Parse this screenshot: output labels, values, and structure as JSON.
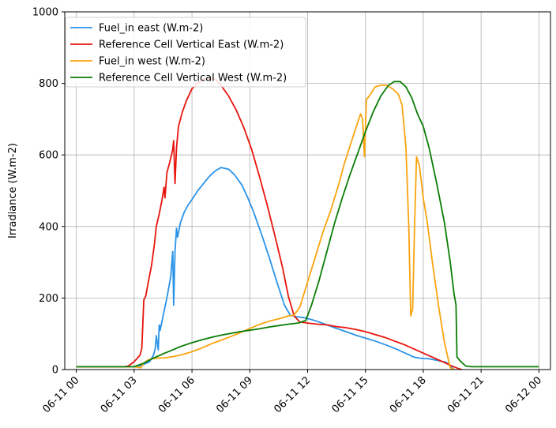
{
  "chart_data": {
    "type": "line",
    "title": "",
    "xlabel": "",
    "ylabel": "Irradiance (W.m-2)",
    "xlim_hours": [
      -0.6,
      24.6
    ],
    "ylim": [
      0,
      1000
    ],
    "grid": true,
    "legend_position": "top-left",
    "x_ticks": [
      {
        "hour": 0,
        "label": "06-11 00"
      },
      {
        "hour": 3,
        "label": "06-11 03"
      },
      {
        "hour": 6,
        "label": "06-11 06"
      },
      {
        "hour": 9,
        "label": "06-11 09"
      },
      {
        "hour": 12,
        "label": "06-11 12"
      },
      {
        "hour": 15,
        "label": "06-11 15"
      },
      {
        "hour": 18,
        "label": "06-11 18"
      },
      {
        "hour": 21,
        "label": "06-11 21"
      },
      {
        "hour": 24,
        "label": "06-12 00"
      }
    ],
    "y_ticks": [
      0,
      200,
      400,
      600,
      800,
      1000
    ],
    "series": [
      {
        "name": "Fuel_in east (W.m-2)",
        "color": "#2b93e8",
        "points": [
          [
            0,
            8
          ],
          [
            2.5,
            8
          ],
          [
            3.0,
            8
          ],
          [
            3.4,
            12
          ],
          [
            3.8,
            22
          ],
          [
            4.0,
            40
          ],
          [
            4.1,
            60
          ],
          [
            4.15,
            95
          ],
          [
            4.25,
            55
          ],
          [
            4.3,
            125
          ],
          [
            4.35,
            110
          ],
          [
            4.5,
            150
          ],
          [
            4.7,
            200
          ],
          [
            4.9,
            260
          ],
          [
            5.0,
            330
          ],
          [
            5.05,
            180
          ],
          [
            5.12,
            330
          ],
          [
            5.2,
            395
          ],
          [
            5.25,
            370
          ],
          [
            5.4,
            410
          ],
          [
            5.6,
            440
          ],
          [
            5.8,
            460
          ],
          [
            6.0,
            475
          ],
          [
            6.3,
            500
          ],
          [
            6.6,
            520
          ],
          [
            6.9,
            540
          ],
          [
            7.2,
            555
          ],
          [
            7.5,
            565
          ],
          [
            7.9,
            560
          ],
          [
            8.2,
            545
          ],
          [
            8.6,
            515
          ],
          [
            8.9,
            480
          ],
          [
            9.2,
            440
          ],
          [
            9.6,
            380
          ],
          [
            10.0,
            315
          ],
          [
            10.4,
            245
          ],
          [
            10.8,
            180
          ],
          [
            11.1,
            152
          ],
          [
            11.4,
            148
          ],
          [
            11.8,
            145
          ],
          [
            12.2,
            140
          ],
          [
            12.6,
            133
          ],
          [
            13.0,
            125
          ],
          [
            13.5,
            115
          ],
          [
            14.0,
            106
          ],
          [
            14.5,
            96
          ],
          [
            15.0,
            88
          ],
          [
            15.6,
            78
          ],
          [
            16.1,
            68
          ],
          [
            16.7,
            55
          ],
          [
            17.1,
            45
          ],
          [
            17.5,
            35
          ],
          [
            17.8,
            32
          ],
          [
            18.3,
            30
          ],
          [
            18.8,
            25
          ],
          [
            19.2,
            20
          ],
          [
            19.5,
            5
          ],
          [
            19.6,
            0
          ]
        ]
      },
      {
        "name": "Reference Cell Vertical East (W.m-2)",
        "color": "#e8140c",
        "points": [
          [
            0,
            8
          ],
          [
            2.5,
            8
          ],
          [
            2.7,
            10
          ],
          [
            3.0,
            22
          ],
          [
            3.3,
            40
          ],
          [
            3.4,
            60
          ],
          [
            3.5,
            195
          ],
          [
            3.6,
            205
          ],
          [
            3.75,
            250
          ],
          [
            3.9,
            290
          ],
          [
            4.05,
            350
          ],
          [
            4.15,
            400
          ],
          [
            4.3,
            435
          ],
          [
            4.45,
            475
          ],
          [
            4.55,
            510
          ],
          [
            4.6,
            480
          ],
          [
            4.7,
            550
          ],
          [
            4.85,
            580
          ],
          [
            5.0,
            615
          ],
          [
            5.05,
            640
          ],
          [
            5.12,
            520
          ],
          [
            5.2,
            620
          ],
          [
            5.3,
            680
          ],
          [
            5.5,
            720
          ],
          [
            5.7,
            750
          ],
          [
            6.0,
            785
          ],
          [
            6.3,
            800
          ],
          [
            6.6,
            812
          ],
          [
            6.9,
            815
          ],
          [
            7.2,
            812
          ],
          [
            7.5,
            795
          ],
          [
            7.9,
            765
          ],
          [
            8.3,
            725
          ],
          [
            8.7,
            675
          ],
          [
            9.1,
            615
          ],
          [
            9.5,
            540
          ],
          [
            9.9,
            460
          ],
          [
            10.3,
            375
          ],
          [
            10.7,
            285
          ],
          [
            11.0,
            205
          ],
          [
            11.3,
            150
          ],
          [
            11.6,
            133
          ],
          [
            12.0,
            130
          ],
          [
            12.5,
            127
          ],
          [
            13.0,
            125
          ],
          [
            13.5,
            120
          ],
          [
            14.0,
            117
          ],
          [
            14.5,
            112
          ],
          [
            15.0,
            106
          ],
          [
            15.5,
            98
          ],
          [
            16.0,
            90
          ],
          [
            16.5,
            80
          ],
          [
            17.0,
            70
          ],
          [
            17.5,
            58
          ],
          [
            18.0,
            46
          ],
          [
            18.5,
            34
          ],
          [
            19.0,
            22
          ],
          [
            19.4,
            12
          ],
          [
            19.8,
            3
          ],
          [
            20.0,
            0
          ]
        ]
      },
      {
        "name": "Fuel_in west (W.m-2)",
        "color": "#f9a40e",
        "points": [
          [
            0,
            8
          ],
          [
            2.5,
            8
          ],
          [
            3.0,
            8
          ],
          [
            3.35,
            5
          ],
          [
            3.5,
            18
          ],
          [
            3.7,
            26
          ],
          [
            3.9,
            30
          ],
          [
            4.2,
            32
          ],
          [
            4.6,
            33
          ],
          [
            5.0,
            36
          ],
          [
            5.5,
            42
          ],
          [
            6.0,
            50
          ],
          [
            6.5,
            60
          ],
          [
            7.0,
            72
          ],
          [
            7.5,
            82
          ],
          [
            8.0,
            92
          ],
          [
            8.5,
            103
          ],
          [
            9.0,
            115
          ],
          [
            9.5,
            126
          ],
          [
            10.0,
            135
          ],
          [
            10.5,
            142
          ],
          [
            11.0,
            150
          ],
          [
            11.3,
            152
          ],
          [
            11.6,
            175
          ],
          [
            12.0,
            245
          ],
          [
            12.4,
            315
          ],
          [
            12.8,
            385
          ],
          [
            13.2,
            445
          ],
          [
            13.6,
            515
          ],
          [
            13.9,
            575
          ],
          [
            14.2,
            625
          ],
          [
            14.5,
            675
          ],
          [
            14.75,
            715
          ],
          [
            14.85,
            700
          ],
          [
            14.95,
            595
          ],
          [
            15.05,
            755
          ],
          [
            15.2,
            765
          ],
          [
            15.5,
            790
          ],
          [
            15.8,
            795
          ],
          [
            16.1,
            795
          ],
          [
            16.4,
            785
          ],
          [
            16.7,
            770
          ],
          [
            16.9,
            740
          ],
          [
            17.1,
            620
          ],
          [
            17.25,
            400
          ],
          [
            17.35,
            150
          ],
          [
            17.45,
            170
          ],
          [
            17.55,
            400
          ],
          [
            17.65,
            595
          ],
          [
            17.8,
            570
          ],
          [
            18.0,
            480
          ],
          [
            18.2,
            415
          ],
          [
            18.5,
            290
          ],
          [
            18.8,
            175
          ],
          [
            19.1,
            75
          ],
          [
            19.4,
            5
          ],
          [
            19.6,
            0
          ]
        ]
      },
      {
        "name": "Reference Cell Vertical West (W.m-2)",
        "color": "#0b7d05",
        "points": [
          [
            0,
            8
          ],
          [
            2.5,
            8
          ],
          [
            3.0,
            8
          ],
          [
            3.5,
            18
          ],
          [
            4.0,
            32
          ],
          [
            4.5,
            44
          ],
          [
            5.0,
            55
          ],
          [
            5.3,
            62
          ],
          [
            5.6,
            68
          ],
          [
            6.0,
            75
          ],
          [
            6.5,
            83
          ],
          [
            7.0,
            90
          ],
          [
            7.5,
            96
          ],
          [
            8.0,
            101
          ],
          [
            8.5,
            106
          ],
          [
            9.0,
            110
          ],
          [
            9.5,
            114
          ],
          [
            10.0,
            119
          ],
          [
            10.5,
            123
          ],
          [
            11.0,
            127
          ],
          [
            11.5,
            130
          ],
          [
            11.9,
            137
          ],
          [
            12.2,
            180
          ],
          [
            12.6,
            250
          ],
          [
            13.0,
            330
          ],
          [
            13.4,
            410
          ],
          [
            13.8,
            480
          ],
          [
            14.2,
            545
          ],
          [
            14.6,
            605
          ],
          [
            15.0,
            665
          ],
          [
            15.4,
            720
          ],
          [
            15.8,
            765
          ],
          [
            16.2,
            795
          ],
          [
            16.5,
            805
          ],
          [
            16.8,
            805
          ],
          [
            17.1,
            790
          ],
          [
            17.4,
            760
          ],
          [
            17.7,
            715
          ],
          [
            18.0,
            680
          ],
          [
            18.3,
            620
          ],
          [
            18.7,
            520
          ],
          [
            19.1,
            410
          ],
          [
            19.4,
            300
          ],
          [
            19.6,
            210
          ],
          [
            19.7,
            180
          ],
          [
            19.75,
            35
          ],
          [
            19.9,
            25
          ],
          [
            20.2,
            10
          ],
          [
            20.5,
            8
          ],
          [
            24.0,
            8
          ]
        ]
      }
    ]
  }
}
